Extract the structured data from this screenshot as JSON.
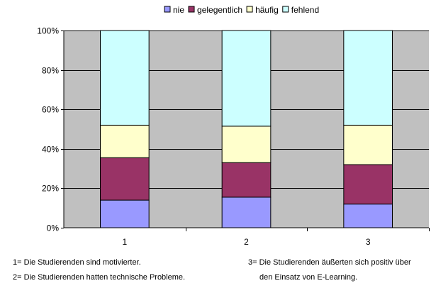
{
  "chart_data": {
    "type": "bar",
    "stacked": true,
    "percent_stacked": true,
    "categories": [
      "1",
      "2",
      "3"
    ],
    "series": [
      {
        "name": "nie",
        "color": "#9999ff",
        "values": [
          14,
          15.5,
          12
        ]
      },
      {
        "name": "gelegentlich",
        "color": "#993366",
        "values": [
          21.5,
          17.5,
          20
        ]
      },
      {
        "name": "häufig",
        "color": "#ffffcc",
        "values": [
          16.5,
          18.5,
          20
        ]
      },
      {
        "name": "fehlend",
        "color": "#ccffff",
        "values": [
          48,
          48.5,
          48
        ]
      }
    ],
    "ylim": [
      0,
      100
    ],
    "yticks": [
      "0%",
      "20%",
      "40%",
      "60%",
      "80%",
      "100%"
    ],
    "grid": true,
    "plot_background": "#c0c0c0",
    "legend_position": "top"
  },
  "notes": {
    "note1": "1= Die Studierenden sind motivierter.",
    "note2": "2= Die Studierenden hatten technische Probleme.",
    "note3_line1": "3= Die Studierenden äußerten sich positiv über",
    "note3_line2": "den Einsatz von E-Learning."
  }
}
